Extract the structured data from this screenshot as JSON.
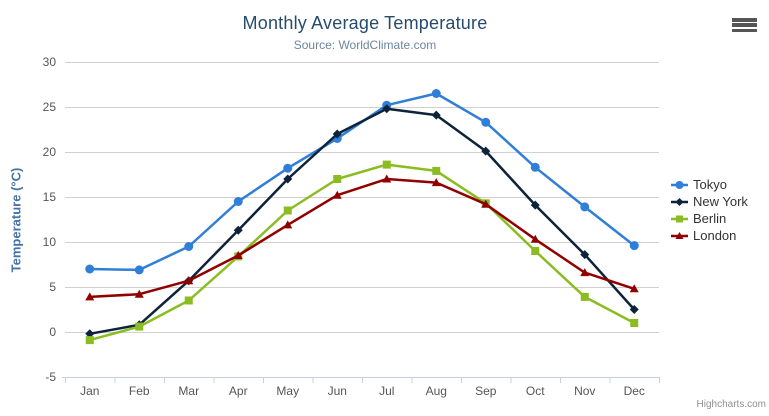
{
  "chart": {
    "title": "Monthly Average Temperature",
    "subtitle": "Source: WorldClimate.com",
    "y_axis_title": "Temperature (°C)",
    "credits_label": "Highcharts.com",
    "menu_icon": "hamburger-menu-icon"
  },
  "chart_data": {
    "type": "line",
    "title": "Monthly Average Temperature",
    "subtitle": "Source: WorldClimate.com",
    "xlabel": "",
    "ylabel": "Temperature (°C)",
    "categories": [
      "Jan",
      "Feb",
      "Mar",
      "Apr",
      "May",
      "Jun",
      "Jul",
      "Aug",
      "Sep",
      "Oct",
      "Nov",
      "Dec"
    ],
    "series": [
      {
        "name": "Tokyo",
        "color": "#2f7ed8",
        "marker": "circle",
        "values": [
          7.0,
          6.9,
          9.5,
          14.5,
          18.2,
          21.5,
          25.2,
          26.5,
          23.3,
          18.3,
          13.9,
          9.6
        ]
      },
      {
        "name": "New York",
        "color": "#0d233a",
        "marker": "diamond",
        "values": [
          -0.2,
          0.8,
          5.7,
          11.3,
          17.0,
          22.0,
          24.8,
          24.1,
          20.1,
          14.1,
          8.6,
          2.5
        ]
      },
      {
        "name": "Berlin",
        "color": "#8bbc21",
        "marker": "square",
        "values": [
          -0.9,
          0.6,
          3.5,
          8.4,
          13.5,
          17.0,
          18.6,
          17.9,
          14.3,
          9.0,
          3.9,
          1.0
        ]
      },
      {
        "name": "London",
        "color": "#910000",
        "marker": "triangle",
        "values": [
          3.9,
          4.2,
          5.7,
          8.5,
          11.9,
          15.2,
          17.0,
          16.6,
          14.2,
          10.3,
          6.6,
          4.8
        ]
      }
    ],
    "ylim": [
      -5,
      30
    ],
    "y_ticks": [
      30,
      25,
      20,
      15,
      10,
      5,
      0,
      -5
    ],
    "grid": true,
    "legend_position": "right"
  },
  "colors": {
    "title": "#274b6d",
    "subtitle": "#6d869f",
    "axis_title": "#4572a7",
    "axis_label": "#555555",
    "gridline": "#d0d0d0",
    "axis_line": "#c0d0e0",
    "legend_text": "#333333",
    "credits": "#909090",
    "series": [
      "#2f7ed8",
      "#0d233a",
      "#8bbc21",
      "#910000"
    ]
  }
}
